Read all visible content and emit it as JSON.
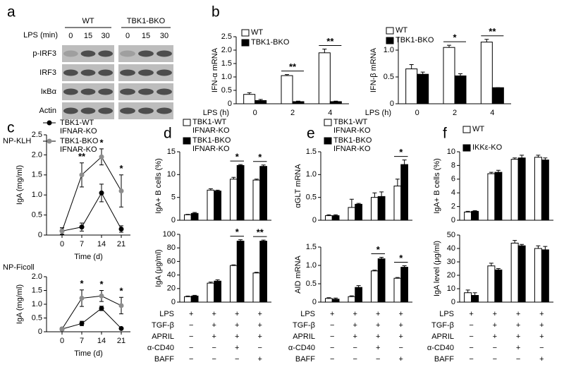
{
  "chart_data": [
    {
      "type": "blot",
      "panel": "a",
      "lane_label": "LPS (min)",
      "groups": [
        "WT",
        "TBK1-BKO"
      ],
      "lanes": [
        "0",
        "15",
        "30"
      ],
      "bands": [
        "p-IRF3",
        "IRF3",
        "IκBα",
        "Actin"
      ]
    },
    {
      "type": "bar",
      "panel": "b",
      "ylabel": "IFN-α mRNA",
      "xlabel": "LPS (h)",
      "categories": [
        "0",
        "2",
        "4"
      ],
      "series": [
        {
          "name": "WT",
          "color": "#ffffff",
          "values": [
            0.35,
            1.05,
            1.9
          ],
          "errors": [
            0.06,
            0.04,
            0.14
          ]
        },
        {
          "name": "TBK1-BKO",
          "color": "#000000",
          "values": [
            0.12,
            0.08,
            0.08
          ],
          "errors": [
            0.04,
            0.02,
            0.02
          ]
        }
      ],
      "significance": [
        null,
        "**",
        "**"
      ],
      "ylim": [
        0,
        2.5
      ],
      "yticks": [
        0,
        0.5,
        {
          "value": 1,
          "label": "1.0"
        },
        1.5,
        {
          "value": 2,
          "label": "2.0"
        },
        2.5
      ]
    },
    {
      "type": "bar",
      "ylabel": "IFN-β mRNA",
      "xlabel": "LPS (h)",
      "categories": [
        "0",
        "2",
        "4"
      ],
      "series": [
        {
          "name": "WT",
          "color": "#ffffff",
          "values": [
            0.65,
            1.05,
            1.15
          ],
          "errors": [
            0.08,
            0.04,
            0.05
          ]
        },
        {
          "name": "TBK1-BKO",
          "color": "#000000",
          "values": [
            0.55,
            0.52,
            0.3
          ],
          "errors": [
            0.04,
            0.04,
            0
          ]
        }
      ],
      "significance": [
        null,
        "*",
        "**"
      ],
      "ylim": [
        0,
        1.25
      ],
      "yticks": [
        0,
        0.5,
        {
          "value": 1,
          "label": "1.0"
        }
      ]
    },
    {
      "type": "line",
      "panel": "c",
      "title": "NP-KLH",
      "ylabel": "IgA (mg/ml)",
      "xlabel": "Time (d)",
      "x": [
        0,
        7,
        14,
        21
      ],
      "xlim": [
        -5.5,
        24.25
      ],
      "xticks": [
        0,
        7,
        14,
        21
      ],
      "series": [
        {
          "name": "TBK1-WT IFNAR-KO",
          "color": "#000000",
          "values": [
            0.1,
            0.2,
            1.05,
            0.15
          ],
          "errors": [
            0.08,
            0.1,
            0.22,
            0.08
          ]
        },
        {
          "name": "TBK1-BKO IFNAR-KO",
          "color": "#8c8c8c",
          "values": [
            0.1,
            1.5,
            1.95,
            1.1
          ],
          "errors": [
            0.08,
            0.3,
            0.2,
            0.4
          ]
        }
      ],
      "significance": [
        null,
        "**",
        "*",
        "*"
      ],
      "ylim": [
        0,
        2.5
      ],
      "yticks": [
        0,
        0.5,
        {
          "value": 1,
          "label": "1.0"
        },
        1.5,
        {
          "value": 2,
          "label": "2.0"
        },
        2.5
      ]
    },
    {
      "type": "line",
      "title": "NP-Ficoll",
      "ylabel": "IgA (mg/ml)",
      "xlabel": "Time (d)",
      "x": [
        0,
        7,
        14,
        21
      ],
      "xlim": [
        -5.5,
        24.25
      ],
      "xticks": [
        0,
        7,
        14,
        21
      ],
      "series": [
        {
          "color": "#000000",
          "values": [
            0.1,
            0.3,
            0.85,
            0.12
          ],
          "errors": [
            0.05,
            0.08,
            0.08,
            0.03
          ]
        },
        {
          "color": "#8c8c8c",
          "values": [
            0.1,
            1.22,
            1.3,
            0.95
          ],
          "errors": [
            0.05,
            0.3,
            0.2,
            0.3
          ]
        }
      ],
      "significance": [
        null,
        "*",
        "*",
        "*"
      ],
      "ylim": [
        0,
        2
      ],
      "yticks": [
        0,
        0.5,
        {
          "value": 1,
          "label": "1.0"
        },
        1.5,
        {
          "value": 2,
          "label": "2.0"
        }
      ]
    },
    {
      "type": "bar",
      "panel": "d",
      "ylabel": "IgA+ B cells (%)",
      "categories": [
        null,
        null,
        null,
        null
      ],
      "series": [
        {
          "name": "TBK1-WT IFNAR-KO",
          "color": "#ffffff",
          "values": [
            1.2,
            6.6,
            9,
            8.8
          ],
          "errors": [
            0.1,
            0.3,
            0.4,
            0.2
          ]
        },
        {
          "name": "TBK1-BKO IFNAR-KO",
          "color": "#000000",
          "values": [
            1.5,
            6.4,
            12,
            11.8
          ],
          "errors": [
            0.2,
            0.2,
            0.2,
            0.3
          ]
        }
      ],
      "significance": [
        null,
        null,
        "*",
        "*"
      ],
      "ylim": [
        0,
        15
      ],
      "yticks": [
        0,
        5,
        10,
        15
      ]
    },
    {
      "type": "bar",
      "ylabel": "IgA (μg/ml)",
      "categories": [
        null,
        null,
        null,
        null
      ],
      "series": [
        {
          "color": "#ffffff",
          "values": [
            8,
            28,
            54,
            43
          ],
          "errors": [
            1,
            1.5,
            1,
            1
          ]
        },
        {
          "color": "#000000",
          "values": [
            9,
            31,
            90,
            90
          ],
          "errors": [
            1,
            2,
            2,
            1.5
          ]
        }
      ],
      "significance": [
        null,
        null,
        "*",
        "**"
      ],
      "ylim": [
        0,
        100
      ],
      "yticks": [
        0,
        20,
        40,
        60,
        80,
        100
      ],
      "conditions": [
        {
          "label": "LPS",
          "signs": [
            "+",
            "+",
            "+",
            "+"
          ]
        },
        {
          "label": "TGF-β",
          "signs": [
            "−",
            "+",
            "+",
            "+"
          ]
        },
        {
          "label": "APRIL",
          "signs": [
            "−",
            "+",
            "+",
            "+"
          ]
        },
        {
          "label": "α-CD40",
          "signs": [
            "−",
            "−",
            "+",
            "−"
          ]
        },
        {
          "label": "BAFF",
          "signs": [
            "−",
            "−",
            "−",
            "+"
          ]
        }
      ]
    },
    {
      "type": "bar",
      "panel": "e",
      "ylabel": "αGLT mRNA",
      "categories": [
        null,
        null,
        null,
        null
      ],
      "series": [
        {
          "name": "TBK1-WT IFNAR-KO",
          "color": "#ffffff",
          "values": [
            0.1,
            0.28,
            0.5,
            0.75
          ],
          "errors": [
            0.02,
            0.18,
            0.1,
            0.15
          ]
        },
        {
          "name": "TBK1-BKO IFNAR-KO",
          "color": "#000000",
          "values": [
            0.1,
            0.35,
            0.52,
            1.22
          ],
          "errors": [
            0.02,
            0.02,
            0.1,
            0.1
          ]
        }
      ],
      "significance": [
        null,
        null,
        null,
        "*"
      ],
      "ylim": [
        0,
        1.5
      ],
      "yticks": [
        0,
        0.5,
        {
          "value": 1,
          "label": "1.0"
        },
        1.5
      ]
    },
    {
      "type": "bar",
      "ylabel": "AID mRNA",
      "categories": [
        null,
        null,
        null,
        null
      ],
      "series": [
        {
          "color": "#ffffff",
          "values": [
            0.1,
            0.15,
            0.85,
            0.65
          ],
          "errors": [
            0.02,
            0.02,
            0.02,
            0.02
          ]
        },
        {
          "color": "#000000",
          "values": [
            0.08,
            0.4,
            1.18,
            0.95
          ],
          "errors": [
            0.03,
            0.05,
            0.04,
            0.04
          ]
        }
      ],
      "significance": [
        null,
        null,
        "*",
        "*"
      ],
      "ylim": [
        0,
        1.5
      ],
      "yticks": [
        0,
        0.5,
        {
          "value": 1,
          "label": "1.0"
        },
        1.5
      ],
      "conditions": [
        {
          "label": "LPS",
          "signs": [
            "+",
            "+",
            "+",
            "+"
          ]
        },
        {
          "label": "TGF-β",
          "signs": [
            "−",
            "+",
            "+",
            "+"
          ]
        },
        {
          "label": "APRIL",
          "signs": [
            "−",
            "+",
            "+",
            "+"
          ]
        },
        {
          "label": "α-CD40",
          "signs": [
            "−",
            "−",
            "+",
            "−"
          ]
        },
        {
          "label": "BAFF",
          "signs": [
            "−",
            "−",
            "−",
            "+"
          ]
        }
      ]
    },
    {
      "type": "bar",
      "panel": "f",
      "ylabel": "IgA+ B cells (%)",
      "categories": [
        null,
        null,
        null,
        null
      ],
      "series": [
        {
          "name": "WT",
          "color": "#ffffff",
          "values": [
            1.2,
            6.8,
            8.9,
            9.2
          ],
          "errors": [
            0.1,
            0.2,
            0.2,
            0.3
          ]
        },
        {
          "name": "IKKε-KO",
          "color": "#000000",
          "values": [
            1.3,
            7,
            9.1,
            8.8
          ],
          "errors": [
            0.1,
            0.3,
            0.4,
            0.3
          ]
        }
      ],
      "ylim": [
        0,
        10
      ],
      "yticks": [
        0,
        2,
        4,
        6,
        8,
        10
      ]
    },
    {
      "type": "bar",
      "ylabel": "IgA level (μg/ml)",
      "categories": [
        null,
        null,
        null,
        null
      ],
      "series": [
        {
          "color": "#ffffff",
          "values": [
            7,
            27,
            44,
            40
          ],
          "errors": [
            2,
            2,
            2,
            2
          ]
        },
        {
          "color": "#000000",
          "values": [
            5,
            24,
            42,
            39
          ],
          "errors": [
            2,
            1,
            1,
            2.5
          ]
        }
      ],
      "ylim": [
        0,
        50
      ],
      "yticks": [
        0,
        10,
        20,
        30,
        40,
        50
      ],
      "conditions": [
        {
          "label": "LPS",
          "signs": [
            "+",
            "+",
            "+",
            "+"
          ]
        },
        {
          "label": "TGF-β",
          "signs": [
            "−",
            "+",
            "+",
            "+"
          ]
        },
        {
          "label": "APRIL",
          "signs": [
            "−",
            "+",
            "+",
            "+"
          ]
        },
        {
          "label": "α-CD40",
          "signs": [
            "−",
            "−",
            "+",
            "−"
          ]
        },
        {
          "label": "BAFF",
          "signs": [
            "−",
            "−",
            "−",
            "+"
          ]
        }
      ]
    }
  ]
}
